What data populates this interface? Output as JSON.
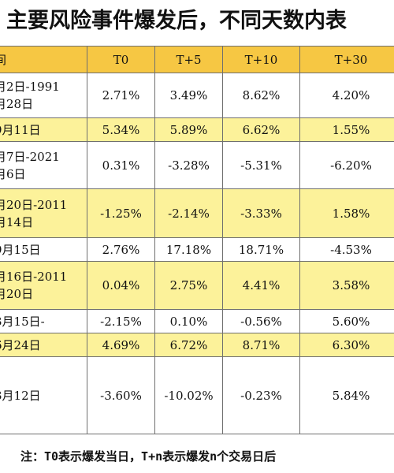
{
  "title": "主要风险事件爆发后，不同天数内表",
  "table": {
    "headers": [
      "间",
      "T0",
      "T+5",
      "T+10",
      "T+30"
    ],
    "rows": [
      {
        "date_line1": "月2日-1991",
        "date_line2": "月28日",
        "t0": "2.71%",
        "t5": "3.49%",
        "t10": "8.62%",
        "t30": "4.20%"
      },
      {
        "date_line1": "9月11日",
        "date_line2": "",
        "t0": "5.34%",
        "t5": "5.89%",
        "t10": "6.62%",
        "t30": "1.55%"
      },
      {
        "date_line1": "月7日-2021",
        "date_line2": "月6日",
        "t0": "0.31%",
        "t5": "-3.28%",
        "t10": "-5.31%",
        "t30": "-6.20%"
      },
      {
        "date_line1": "月20日-2011",
        "date_line2": "月14日",
        "t0": "-1.25%",
        "t5": "-2.14%",
        "t10": "-3.33%",
        "t30": "1.58%"
      },
      {
        "date_line1": "9月15日",
        "date_line2": "",
        "t0": "2.76%",
        "t5": "17.18%",
        "t10": "18.71%",
        "t30": "-4.53%"
      },
      {
        "date_line1": "月16日-2011",
        "date_line2": "月20日",
        "t0": "0.04%",
        "t5": "2.75%",
        "t10": "4.41%",
        "t30": "3.58%"
      },
      {
        "date_line1": "3月15日-",
        "date_line2": "",
        "t0": "-2.15%",
        "t5": "0.10%",
        "t10": "-0.56%",
        "t30": "5.60%"
      },
      {
        "date_line1": "6月24日",
        "date_line2": "",
        "t0": "4.69%",
        "t5": "6.72%",
        "t10": "8.71%",
        "t30": "6.30%"
      },
      {
        "date_line1": "3月12日",
        "date_line2": "",
        "t0": "-3.60%",
        "t5": "-10.02%",
        "t10": "-0.23%",
        "t30": "5.84%"
      }
    ]
  },
  "footnote": "注：T0表示爆发当日，T+n表示爆发n个交易日后",
  "colors": {
    "header_bg": "#f6c743",
    "highlight_row_bg": "#fcf29a",
    "plain_row_bg": "#ffffff",
    "border": "#6f6f6f"
  }
}
